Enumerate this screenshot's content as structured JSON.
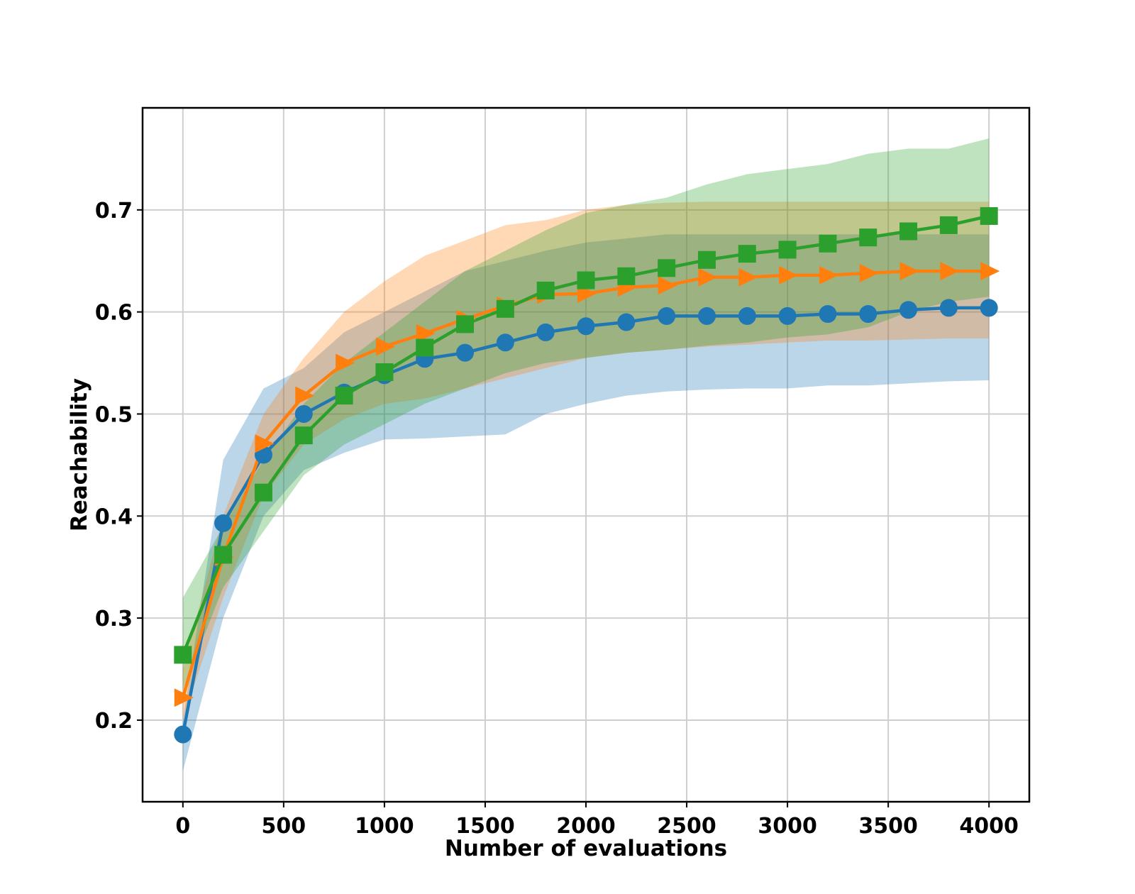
{
  "chart_data": {
    "type": "line",
    "title": "",
    "xlabel": "Number of evaluations",
    "ylabel": "Reachability",
    "xlim": [
      -200,
      4200
    ],
    "ylim": [
      0.12,
      0.8
    ],
    "x_ticks": [
      0,
      500,
      1000,
      1500,
      2000,
      2500,
      3000,
      3500,
      4000
    ],
    "x_tick_labels": [
      "0",
      "500",
      "1000",
      "1500",
      "2000",
      "2500",
      "3000",
      "3500",
      "4000"
    ],
    "y_ticks": [
      0.2,
      0.3,
      0.4,
      0.5,
      0.6,
      0.7
    ],
    "y_tick_labels": [
      "0.2",
      "0.3",
      "0.4",
      "0.5",
      "0.6",
      "0.7"
    ],
    "grid": true,
    "x": [
      0,
      200,
      400,
      600,
      800,
      1000,
      1200,
      1400,
      1600,
      1800,
      2000,
      2200,
      2400,
      2600,
      2800,
      3000,
      3200,
      3400,
      3600,
      3800,
      4000
    ],
    "series": [
      {
        "color": "#1f77b4",
        "marker": "circle",
        "values": [
          0.186,
          0.393,
          0.46,
          0.5,
          0.521,
          0.538,
          0.554,
          0.56,
          0.57,
          0.58,
          0.586,
          0.59,
          0.596,
          0.596,
          0.596,
          0.596,
          0.598,
          0.598,
          0.602,
          0.604,
          0.604
        ],
        "band_upper": [
          0.2,
          0.455,
          0.525,
          0.545,
          0.58,
          0.6,
          0.62,
          0.64,
          0.65,
          0.66,
          0.668,
          0.672,
          0.676,
          0.676,
          0.676,
          0.676,
          0.676,
          0.676,
          0.676,
          0.676,
          0.676
        ],
        "band_lower": [
          0.15,
          0.3,
          0.4,
          0.445,
          0.462,
          0.475,
          0.476,
          0.478,
          0.48,
          0.5,
          0.51,
          0.518,
          0.522,
          0.524,
          0.525,
          0.525,
          0.528,
          0.528,
          0.53,
          0.532,
          0.533
        ]
      },
      {
        "color": "#ff7f0e",
        "marker": "triangle-right",
        "values": [
          0.222,
          0.36,
          0.471,
          0.518,
          0.55,
          0.566,
          0.579,
          0.593,
          0.606,
          0.617,
          0.618,
          0.624,
          0.626,
          0.634,
          0.634,
          0.636,
          0.636,
          0.638,
          0.64,
          0.64,
          0.64
        ],
        "band_upper": [
          0.25,
          0.4,
          0.5,
          0.555,
          0.6,
          0.63,
          0.655,
          0.67,
          0.685,
          0.69,
          0.7,
          0.705,
          0.707,
          0.708,
          0.708,
          0.708,
          0.708,
          0.708,
          0.708,
          0.708,
          0.708
        ],
        "band_lower": [
          0.2,
          0.32,
          0.42,
          0.47,
          0.495,
          0.51,
          0.515,
          0.525,
          0.535,
          0.545,
          0.555,
          0.56,
          0.563,
          0.566,
          0.568,
          0.57,
          0.572,
          0.572,
          0.573,
          0.574,
          0.574
        ]
      },
      {
        "color": "#2ca02c",
        "marker": "square",
        "values": [
          0.264,
          0.362,
          0.423,
          0.479,
          0.518,
          0.541,
          0.565,
          0.588,
          0.603,
          0.621,
          0.631,
          0.635,
          0.643,
          0.651,
          0.657,
          0.661,
          0.667,
          0.673,
          0.679,
          0.685,
          0.694
        ],
        "band_upper": [
          0.32,
          0.39,
          0.455,
          0.51,
          0.55,
          0.58,
          0.61,
          0.64,
          0.66,
          0.68,
          0.697,
          0.705,
          0.712,
          0.725,
          0.735,
          0.74,
          0.745,
          0.755,
          0.76,
          0.76,
          0.77
        ],
        "band_lower": [
          0.23,
          0.33,
          0.385,
          0.44,
          0.47,
          0.49,
          0.51,
          0.525,
          0.54,
          0.55,
          0.555,
          0.56,
          0.563,
          0.567,
          0.57,
          0.575,
          0.578,
          0.585,
          0.6,
          0.61,
          0.615
        ]
      }
    ]
  }
}
